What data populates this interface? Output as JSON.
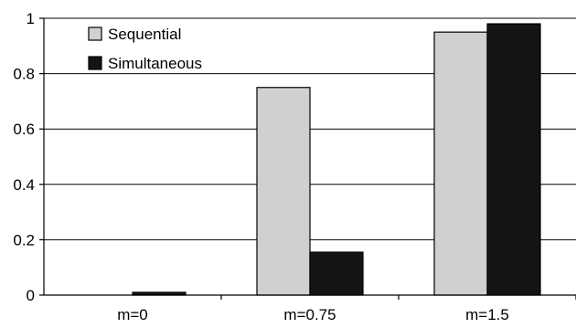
{
  "chart_data": {
    "type": "bar",
    "categories": [
      "m=0",
      "m=0.75",
      "m=1.5"
    ],
    "series": [
      {
        "name": "Sequential",
        "values": [
          0,
          0.75,
          0.95
        ],
        "color": "#d0d0d0"
      },
      {
        "name": "Simultaneous",
        "values": [
          0.01,
          0.155,
          0.98
        ],
        "color": "#141414"
      }
    ],
    "ylim": [
      0,
      1
    ],
    "yticks": [
      "0",
      "0.2",
      "0.4",
      "0.6",
      "0.8",
      "1"
    ],
    "ytick_values": [
      0,
      0.2,
      0.4,
      0.6,
      0.8,
      1
    ],
    "grid": true,
    "legend_position": "top-left"
  }
}
